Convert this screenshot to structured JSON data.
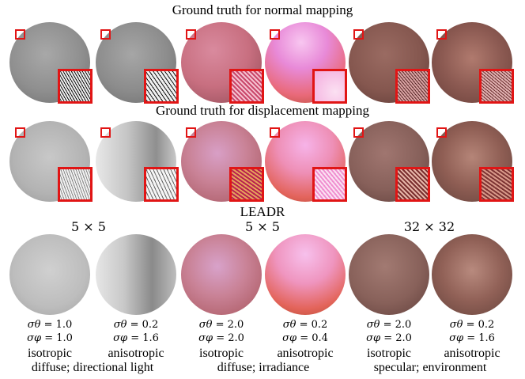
{
  "titles": {
    "normal": "Ground truth for normal mapping",
    "displacement": "Ground truth for displacement mapping",
    "leadr": "LEADR"
  },
  "resolutions": [
    "5 × 5",
    "5 × 5",
    "32 × 32"
  ],
  "params": [
    {
      "theta_sym": "σθ",
      "theta": "= 1.0",
      "phi_sym": "σφ",
      "phi": "= 1.0",
      "kind": "isotropic"
    },
    {
      "theta_sym": "σθ",
      "theta": "= 0.2",
      "phi_sym": "σφ",
      "phi": "= 1.6",
      "kind": "anisotropic"
    },
    {
      "theta_sym": "σθ",
      "theta": "= 2.0",
      "phi_sym": "σφ",
      "phi": "= 2.0",
      "kind": "isotropic"
    },
    {
      "theta_sym": "σθ",
      "theta": "= 0.2",
      "phi_sym": "σφ",
      "phi": "= 0.4",
      "kind": "anisotropic"
    },
    {
      "theta_sym": "σθ",
      "theta": "= 2.0",
      "phi_sym": "σφ",
      "phi": "= 2.0",
      "kind": "isotropic"
    },
    {
      "theta_sym": "σθ",
      "theta": "= 0.2",
      "phi_sym": "σφ",
      "phi": "= 1.6",
      "kind": "anisotropic"
    }
  ],
  "groups": [
    "diffuse; directional light",
    "diffuse; irradiance",
    "specular; environment"
  ],
  "colors": {
    "marker": "#e11515"
  }
}
